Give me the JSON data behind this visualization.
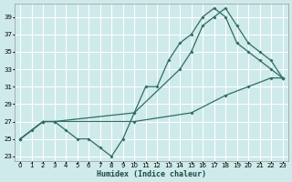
{
  "xlabel": "Humidex (Indice chaleur)",
  "bg_color": "#ceeaea",
  "grid_color": "#ffffff",
  "line_color": "#2e6e62",
  "yticks": [
    23,
    25,
    27,
    29,
    31,
    33,
    35,
    37,
    39
  ],
  "xticks": [
    0,
    1,
    2,
    3,
    4,
    5,
    6,
    7,
    8,
    9,
    10,
    11,
    12,
    13,
    14,
    15,
    16,
    17,
    18,
    19,
    20,
    21,
    22,
    23
  ],
  "line1_x": [
    0,
    1,
    2,
    3,
    4,
    5,
    6,
    7,
    8,
    9,
    10,
    11,
    12,
    13,
    14,
    15,
    16,
    17,
    18,
    19,
    20,
    21,
    22,
    23
  ],
  "line1_y": [
    25,
    26,
    27,
    27,
    26,
    25,
    25,
    24,
    23,
    25,
    28,
    31,
    31,
    34,
    36,
    37,
    39,
    40,
    39,
    36,
    35,
    34,
    33,
    32
  ],
  "line2_x": [
    0,
    2,
    3,
    10,
    14,
    15,
    16,
    17,
    18,
    19,
    20,
    21,
    22,
    23
  ],
  "line2_y": [
    25,
    27,
    27,
    28,
    33,
    35,
    38,
    39,
    40,
    38,
    36,
    35,
    34,
    32
  ],
  "line3_x": [
    0,
    2,
    10,
    15,
    18,
    20,
    22,
    23
  ],
  "line3_y": [
    25,
    27,
    27,
    28,
    30,
    31,
    32,
    32
  ]
}
